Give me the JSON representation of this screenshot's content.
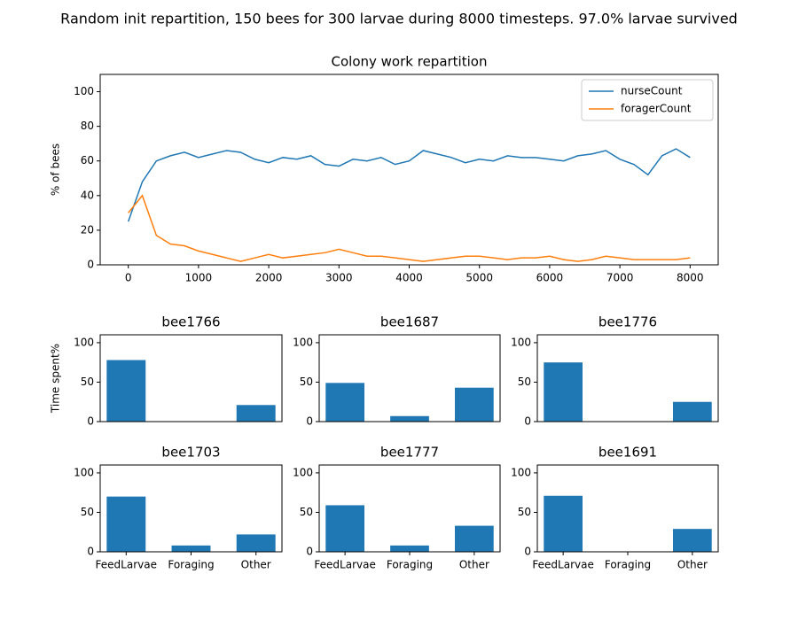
{
  "title": "Random init repartition, 150 bees for 300 larvae during 8000 timesteps. 97.0% larvae survived",
  "chart_data": [
    {
      "type": "line",
      "title": "Colony work repartition",
      "y_label": "% of bees",
      "x": [
        0,
        200,
        400,
        600,
        800,
        1000,
        1200,
        1400,
        1600,
        1800,
        2000,
        2200,
        2400,
        2600,
        2800,
        3000,
        3200,
        3400,
        3600,
        3800,
        4000,
        4200,
        4400,
        4600,
        4800,
        5000,
        5200,
        5400,
        5600,
        5800,
        6000,
        6200,
        6400,
        6600,
        6800,
        7000,
        7200,
        7400,
        7600,
        7800,
        8000
      ],
      "series": [
        {
          "name": "nurseCount",
          "color": "#1f77b4",
          "values": [
            25,
            48,
            60,
            63,
            65,
            62,
            64,
            66,
            65,
            61,
            59,
            62,
            61,
            63,
            58,
            57,
            61,
            60,
            62,
            58,
            60,
            66,
            64,
            62,
            59,
            61,
            60,
            63,
            62,
            62,
            61,
            60,
            63,
            64,
            66,
            61,
            58,
            52,
            63,
            67,
            62
          ]
        },
        {
          "name": "foragerCount",
          "color": "#ff7f0e",
          "values": [
            30,
            40,
            17,
            12,
            11,
            8,
            6,
            4,
            2,
            4,
            6,
            4,
            5,
            6,
            7,
            9,
            7,
            5,
            5,
            4,
            3,
            2,
            3,
            4,
            5,
            5,
            4,
            3,
            4,
            4,
            5,
            3,
            2,
            3,
            5,
            4,
            3,
            3,
            3,
            3,
            4
          ]
        }
      ],
      "xlim": [
        -400,
        8400
      ],
      "xticks": [
        0,
        1000,
        2000,
        3000,
        4000,
        5000,
        6000,
        7000,
        8000
      ],
      "ylim": [
        0,
        110
      ],
      "yticks": [
        0,
        20,
        40,
        60,
        80,
        100
      ],
      "legend": "upper right"
    },
    {
      "type": "bar",
      "title": "bee1766",
      "y_label": "Time spent%",
      "categories": [
        null,
        null,
        null
      ],
      "values": [
        78,
        0,
        21
      ],
      "color": "#1f77b4",
      "ylim": [
        0,
        110
      ],
      "yticks": [
        0,
        50,
        100
      ]
    },
    {
      "type": "bar",
      "title": "bee1687",
      "categories": [
        null,
        null,
        null
      ],
      "values": [
        49,
        7,
        43
      ],
      "color": "#1f77b4",
      "ylim": [
        0,
        110
      ],
      "yticks": [
        0,
        50,
        100
      ]
    },
    {
      "type": "bar",
      "title": "bee1776",
      "categories": [
        null,
        null,
        null
      ],
      "values": [
        75,
        0,
        25
      ],
      "color": "#1f77b4",
      "ylim": [
        0,
        110
      ],
      "yticks": [
        0,
        50,
        100
      ]
    },
    {
      "type": "bar",
      "title": "bee1703",
      "categories": [
        "FeedLarvae",
        "Foraging",
        "Other"
      ],
      "values": [
        70,
        8,
        22
      ],
      "color": "#1f77b4",
      "ylim": [
        0,
        110
      ],
      "yticks": [
        0,
        50,
        100
      ]
    },
    {
      "type": "bar",
      "title": "bee1777",
      "categories": [
        "FeedLarvae",
        "Foraging",
        "Other"
      ],
      "values": [
        59,
        8,
        33
      ],
      "color": "#1f77b4",
      "ylim": [
        0,
        110
      ],
      "yticks": [
        0,
        50,
        100
      ]
    },
    {
      "type": "bar",
      "title": "bee1691",
      "categories": [
        "FeedLarvae",
        "Foraging",
        "Other"
      ],
      "values": [
        71,
        0,
        29
      ],
      "color": "#1f77b4",
      "ylim": [
        0,
        110
      ],
      "yticks": [
        0,
        50,
        100
      ]
    }
  ]
}
